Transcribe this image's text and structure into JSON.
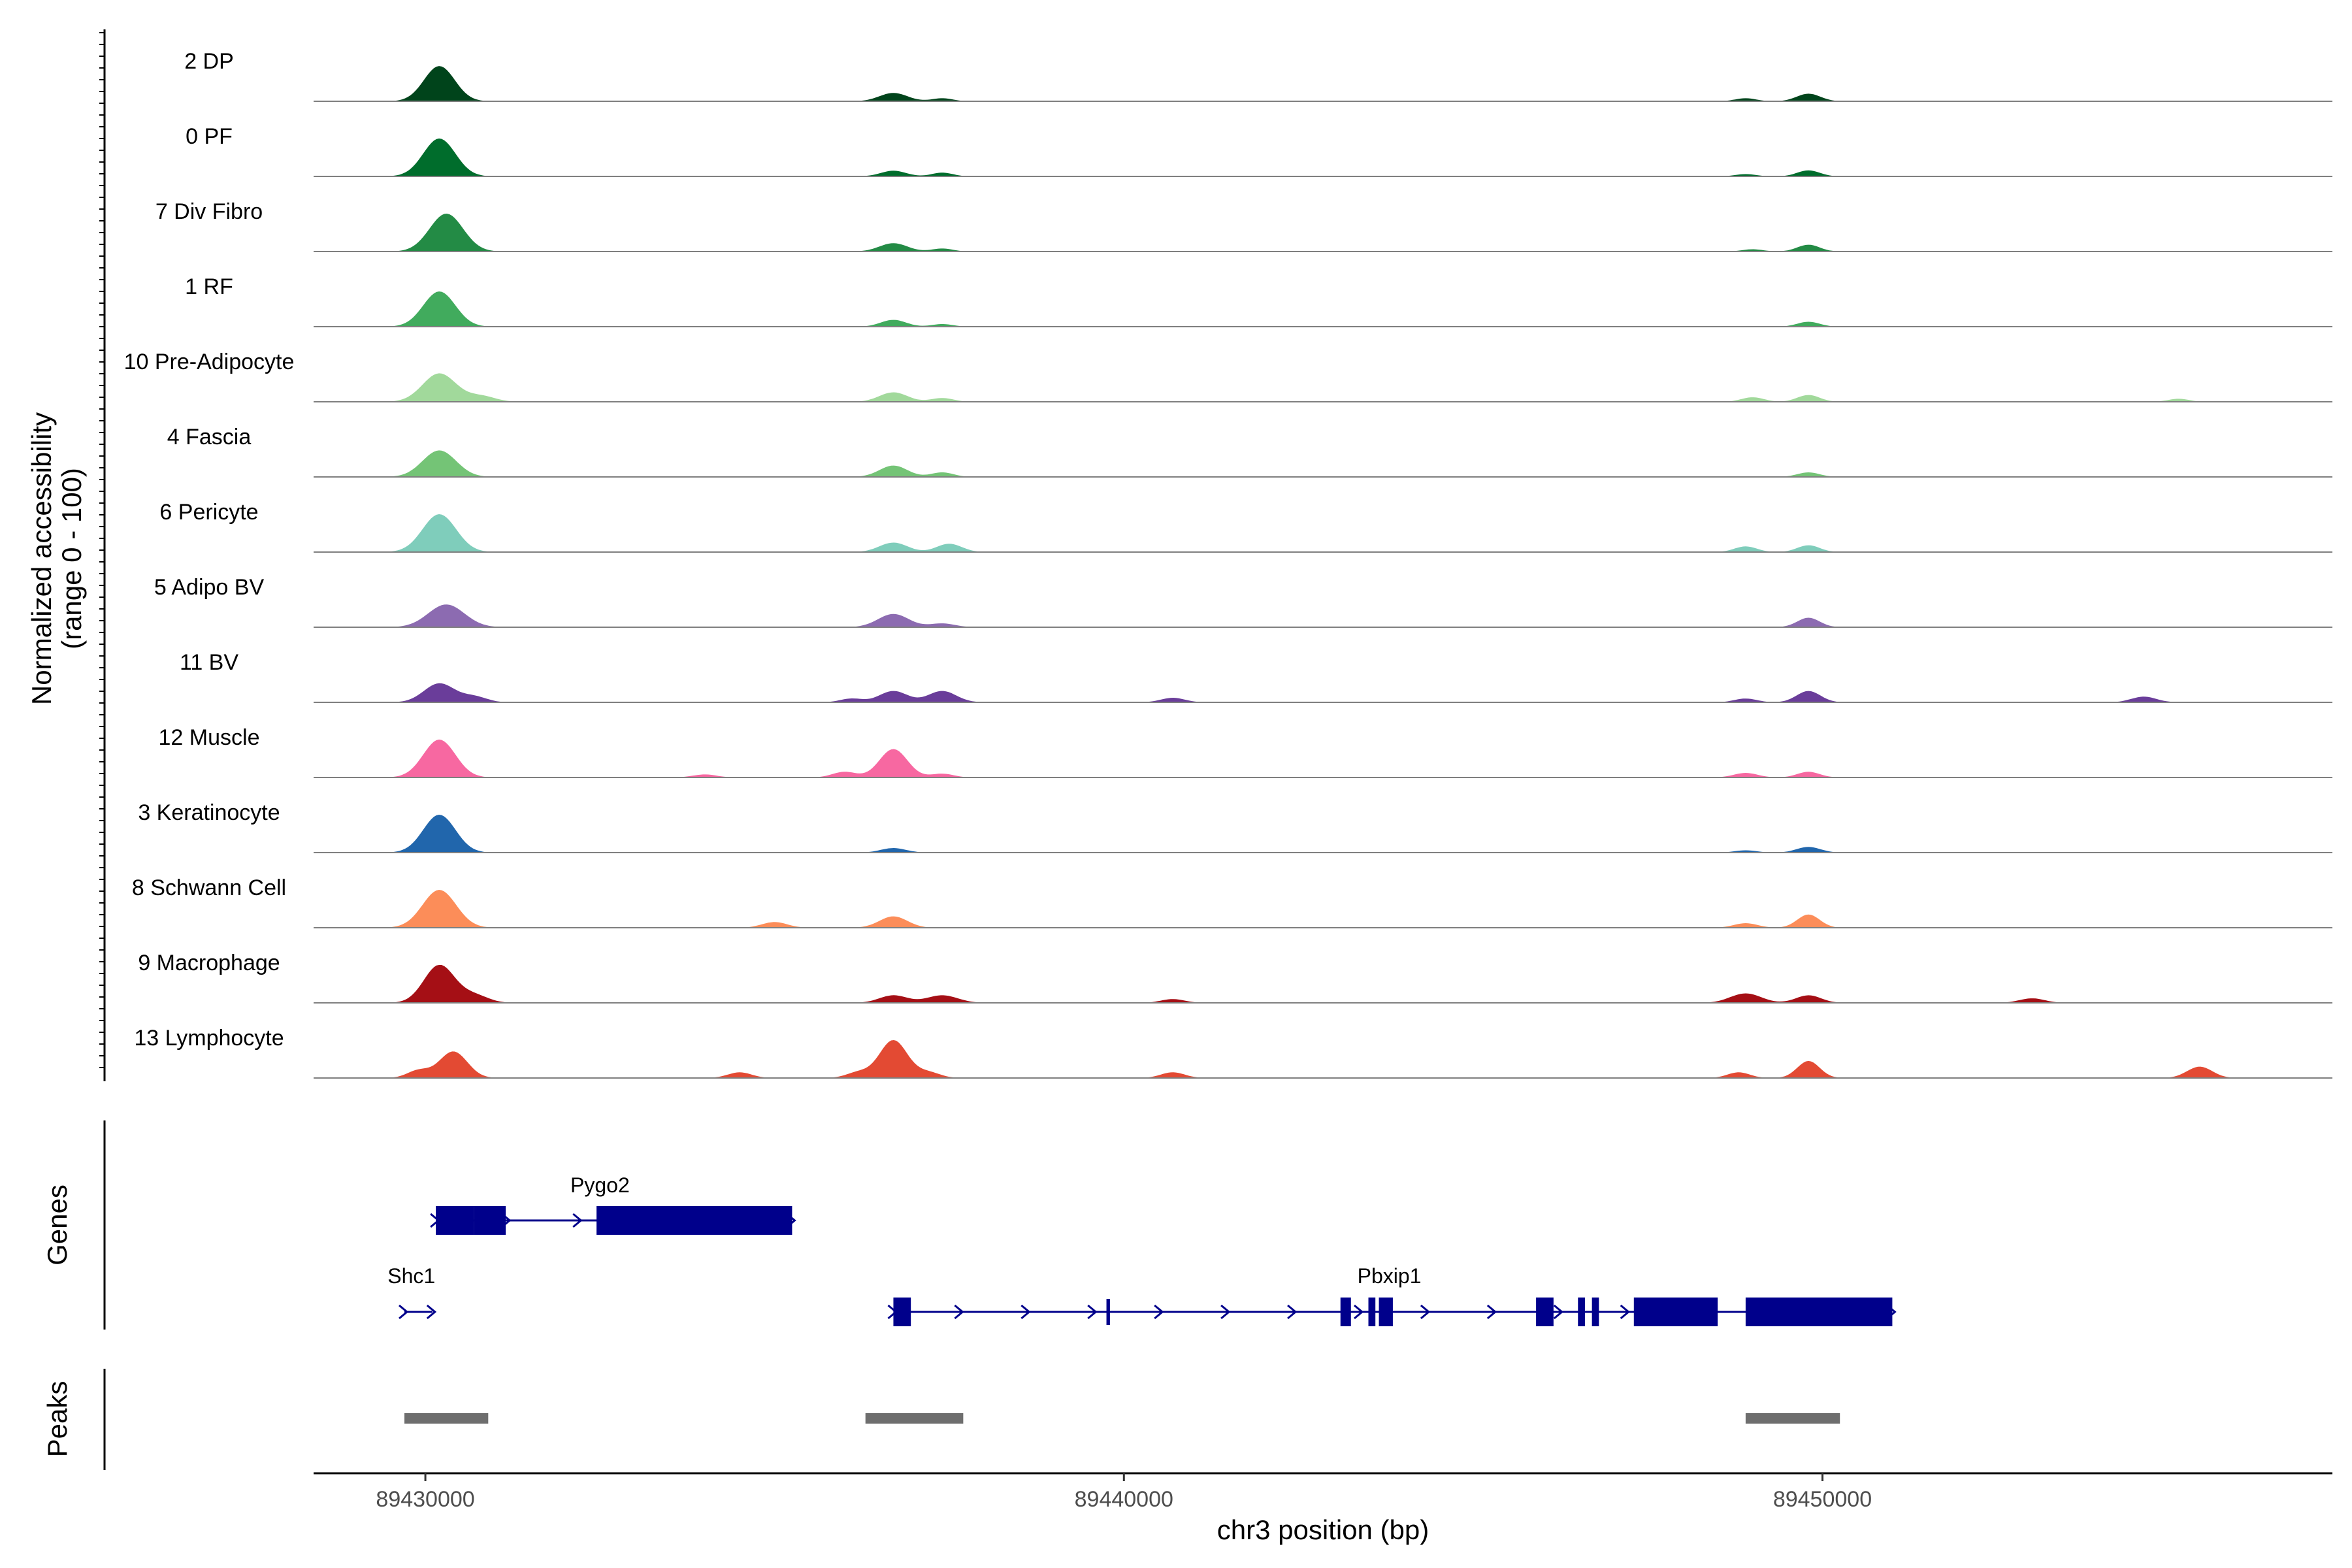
{
  "chart_data": {
    "type": "area",
    "title": "",
    "ylabel_lines": [
      "Normalized accessibility",
      "(range 0 - 100)"
    ],
    "xlabel": "chr3 position (bp)",
    "xlim": [
      89428400,
      89457300
    ],
    "ylim": [
      0,
      100
    ],
    "x_ticks": [
      89430000,
      89440000,
      89450000
    ],
    "x_tick_labels": [
      "89430000",
      "89440000",
      "89450000"
    ],
    "tracks": [
      {
        "name": "2 DP",
        "color": "#00441b",
        "peaks": [
          [
            89430200,
            93,
            220
          ],
          [
            89436700,
            22,
            200
          ],
          [
            89437400,
            8,
            150
          ],
          [
            89449800,
            20,
            170
          ],
          [
            89448900,
            8,
            150
          ]
        ]
      },
      {
        "name": "0 PF",
        "color": "#006d2c",
        "peaks": [
          [
            89430200,
            100,
            230
          ],
          [
            89436700,
            15,
            180
          ],
          [
            89437400,
            10,
            150
          ],
          [
            89449800,
            16,
            160
          ],
          [
            89448900,
            6,
            150
          ]
        ]
      },
      {
        "name": "7 Div Fibro",
        "color": "#238b45",
        "peaks": [
          [
            89430300,
            100,
            240
          ],
          [
            89436700,
            22,
            200
          ],
          [
            89437400,
            8,
            150
          ],
          [
            89449800,
            18,
            160
          ],
          [
            89449000,
            6,
            150
          ]
        ]
      },
      {
        "name": "1 RF",
        "color": "#41ab5d",
        "peaks": [
          [
            89430200,
            93,
            230
          ],
          [
            89436700,
            18,
            180
          ],
          [
            89437400,
            7,
            150
          ],
          [
            89449800,
            13,
            160
          ]
        ]
      },
      {
        "name": "10 Pre-Adipocyte",
        "color": "#a1d99b",
        "peaks": [
          [
            89430200,
            75,
            240
          ],
          [
            89430800,
            15,
            200
          ],
          [
            89436700,
            25,
            200
          ],
          [
            89437400,
            10,
            160
          ],
          [
            89449800,
            18,
            160
          ],
          [
            89449000,
            12,
            160
          ],
          [
            89455100,
            8,
            150
          ]
        ]
      },
      {
        "name": "4 Fascia",
        "color": "#74c476",
        "peaks": [
          [
            89430200,
            70,
            240
          ],
          [
            89436700,
            30,
            200
          ],
          [
            89437400,
            12,
            160
          ],
          [
            89449800,
            12,
            160
          ]
        ]
      },
      {
        "name": "6 Pericyte",
        "color": "#7fcdbb",
        "peaks": [
          [
            89430200,
            100,
            240
          ],
          [
            89436700,
            25,
            200
          ],
          [
            89437500,
            22,
            180
          ],
          [
            89449800,
            18,
            160
          ],
          [
            89448900,
            15,
            160
          ]
        ]
      },
      {
        "name": "5 Adipo BV",
        "color": "#8c6bb1",
        "peaks": [
          [
            89430300,
            60,
            260
          ],
          [
            89436700,
            35,
            220
          ],
          [
            89437400,
            10,
            180
          ],
          [
            89449800,
            25,
            160
          ]
        ]
      },
      {
        "name": "11 BV",
        "color": "#6a3d9a",
        "peaks": [
          [
            89430200,
            50,
            220
          ],
          [
            89430700,
            15,
            180
          ],
          [
            89436700,
            30,
            200
          ],
          [
            89437400,
            30,
            200
          ],
          [
            89436100,
            10,
            160
          ],
          [
            89440700,
            12,
            170
          ],
          [
            89449800,
            30,
            170
          ],
          [
            89448900,
            10,
            160
          ],
          [
            89454600,
            15,
            180
          ]
        ]
      },
      {
        "name": "12 Muscle",
        "color": "#f768a1",
        "peaks": [
          [
            89430200,
            100,
            230
          ],
          [
            89436700,
            75,
            200
          ],
          [
            89436000,
            15,
            170
          ],
          [
            89437400,
            10,
            160
          ],
          [
            89448900,
            12,
            170
          ],
          [
            89449800,
            15,
            160
          ],
          [
            89434000,
            8,
            170
          ]
        ]
      },
      {
        "name": "3 Keratinocyte",
        "color": "#2166ac",
        "peaks": [
          [
            89430200,
            100,
            230
          ],
          [
            89436700,
            12,
            180
          ],
          [
            89449800,
            15,
            170
          ],
          [
            89448900,
            6,
            160
          ]
        ]
      },
      {
        "name": "8 Schwann Cell",
        "color": "#fc8d59",
        "peaks": [
          [
            89430200,
            100,
            240
          ],
          [
            89436700,
            30,
            200
          ],
          [
            89435000,
            15,
            180
          ],
          [
            89449800,
            35,
            160
          ],
          [
            89448900,
            12,
            170
          ]
        ]
      },
      {
        "name": "9 Macrophage",
        "color": "#a50f15",
        "peaks": [
          [
            89430200,
            100,
            220
          ],
          [
            89430700,
            20,
            200
          ],
          [
            89436700,
            20,
            200
          ],
          [
            89437400,
            20,
            220
          ],
          [
            89440700,
            10,
            170
          ],
          [
            89448900,
            25,
            220
          ],
          [
            89449800,
            20,
            180
          ],
          [
            89453000,
            12,
            180
          ]
        ]
      },
      {
        "name": "13 Lymphocyte",
        "color": "#e34a33",
        "peaks": [
          [
            89430400,
            70,
            200
          ],
          [
            89429900,
            20,
            160
          ],
          [
            89436700,
            100,
            200
          ],
          [
            89436200,
            15,
            170
          ],
          [
            89437200,
            15,
            170
          ],
          [
            89440700,
            15,
            170
          ],
          [
            89449800,
            45,
            160
          ],
          [
            89448800,
            15,
            160
          ],
          [
            89455400,
            30,
            180
          ],
          [
            89434500,
            15,
            170
          ]
        ]
      }
    ],
    "genes": [
      {
        "name": "Pygo2",
        "strand": "+",
        "start": 89430150,
        "end": 89435250,
        "blocks": [
          [
            89430150,
            89430700
          ],
          [
            89430700,
            89431150
          ],
          [
            89432450,
            89435250
          ]
        ],
        "thin_blocks": []
      },
      {
        "name": "Shc1",
        "strand": "+",
        "start": 89429700,
        "end": 89430100,
        "blocks": [],
        "thin_blocks": []
      },
      {
        "name": "Pbxip1",
        "strand": "+",
        "start": 89436700,
        "end": 89451000,
        "blocks": [
          [
            89436700,
            89436950
          ],
          [
            89443100,
            89443250
          ],
          [
            89443500,
            89443600
          ],
          [
            89443650,
            89443850
          ],
          [
            89445900,
            89446150
          ],
          [
            89446500,
            89446600
          ],
          [
            89446700,
            89446800
          ],
          [
            89447300,
            89448500
          ],
          [
            89448900,
            89451000
          ]
        ],
        "thin_blocks": [
          [
            89439750,
            89439800
          ]
        ]
      }
    ],
    "peaks": [
      {
        "start": 89429700,
        "end": 89430900
      },
      {
        "start": 89436300,
        "end": 89437700
      },
      {
        "start": 89448900,
        "end": 89450250
      }
    ],
    "panel_titles": [
      "Genes",
      "Peaks"
    ]
  }
}
